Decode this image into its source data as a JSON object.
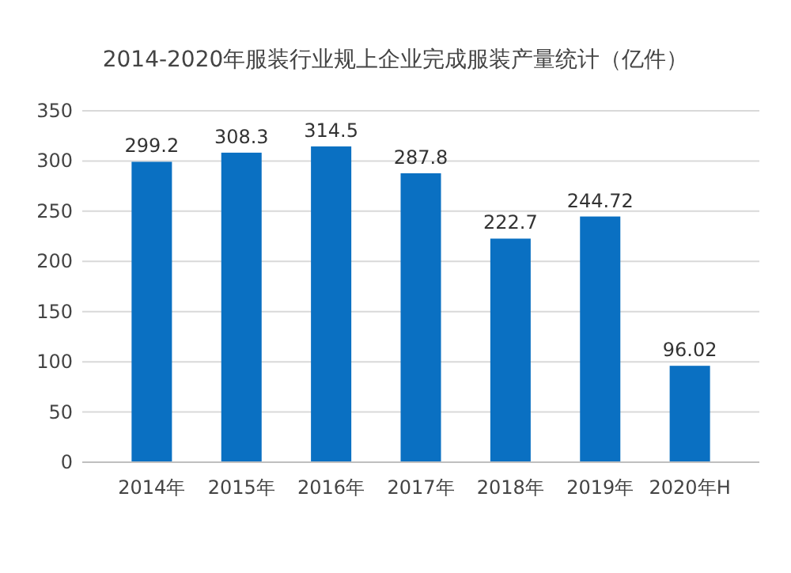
{
  "chart_data": {
    "type": "bar",
    "title": "2014-2020年服装行业规上企业完成服装产量统计（亿件）",
    "categories": [
      "2014年",
      "2015年",
      "2016年",
      "2017年",
      "2018年",
      "2019年",
      "2020年H"
    ],
    "values": [
      299.2,
      308.3,
      314.5,
      287.8,
      222.7,
      244.72,
      96.02
    ],
    "color": "#0a70c2",
    "ylim": [
      0,
      350
    ],
    "yticks": [
      0,
      50,
      100,
      150,
      200,
      250,
      300,
      350
    ],
    "grid": "y",
    "data_labels": true
  }
}
